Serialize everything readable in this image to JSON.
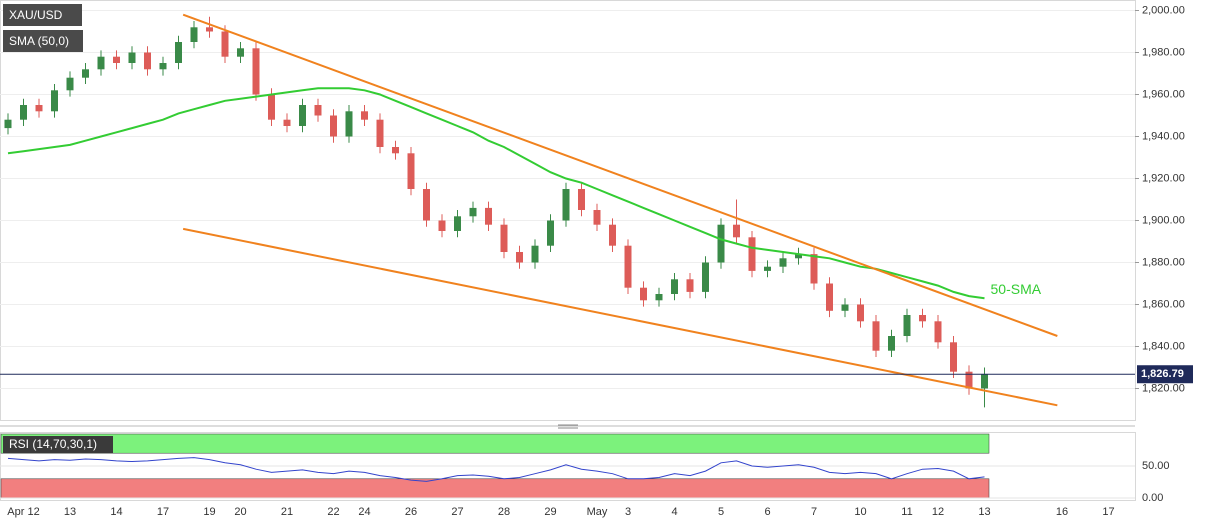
{
  "chart_data": [
    {
      "type": "candlestick",
      "title": "XAU/USD",
      "categories": [
        null,
        "Apr 12",
        null,
        null,
        "13",
        null,
        null,
        "14",
        null,
        null,
        "17",
        null,
        null,
        "19",
        null,
        "20",
        null,
        null,
        "21",
        null,
        null,
        "22",
        null,
        "24",
        null,
        null,
        "26",
        null,
        null,
        "27",
        null,
        null,
        "28",
        null,
        null,
        "29",
        null,
        null,
        "May",
        null,
        "3",
        null,
        null,
        "4",
        null,
        null,
        "5",
        null,
        null,
        "6",
        null,
        null,
        "7",
        null,
        null,
        "10",
        null,
        null,
        "11",
        null,
        "12",
        null,
        null,
        "13",
        null,
        null,
        null,
        null,
        "16",
        null,
        null,
        "17",
        null
      ],
      "open": [
        1944,
        1948,
        1955,
        1952,
        1962,
        1968,
        1972,
        1978,
        1975,
        1980,
        1972,
        1975,
        1985,
        1992,
        1990,
        1978,
        1982,
        1960,
        1948,
        1945,
        1955,
        1950,
        1940,
        1952,
        1948,
        1935,
        1932,
        1915,
        1900,
        1895,
        1902,
        1906,
        1898,
        1885,
        1880,
        1888,
        1900,
        1915,
        1905,
        1898,
        1888,
        1868,
        1862,
        1865,
        1872,
        1866,
        1880,
        1898,
        1892,
        1876,
        1878,
        1882,
        1884,
        1870,
        1857,
        1860,
        1852,
        1838,
        1845,
        1855,
        1852,
        1842,
        1828,
        1820,
        null,
        null,
        null,
        null,
        null,
        null,
        null,
        null,
        null
      ],
      "high": [
        1951,
        1958,
        1958,
        1965,
        1971,
        1975,
        1981,
        1981,
        1983,
        1983,
        1978,
        1988,
        1995,
        1997,
        1993,
        1985,
        1985,
        1963,
        1951,
        1958,
        1958,
        1953,
        1955,
        1955,
        1951,
        1938,
        1935,
        1918,
        1903,
        1905,
        1909,
        1909,
        1901,
        1888,
        1891,
        1903,
        1918,
        1918,
        1908,
        1901,
        1891,
        1871,
        1868,
        1875,
        1875,
        1883,
        1901,
        1910,
        1895,
        1881,
        1885,
        1887,
        1887,
        1873,
        1863,
        1863,
        1855,
        1848,
        1858,
        1858,
        1855,
        1845,
        1831,
        1830,
        null,
        null,
        null,
        null,
        null,
        null,
        null,
        null,
        null
      ],
      "low": [
        1941,
        1945,
        1949,
        1949,
        1959,
        1965,
        1969,
        1972,
        1972,
        1969,
        1969,
        1972,
        1982,
        1987,
        1975,
        1975,
        1957,
        1945,
        1942,
        1942,
        1947,
        1937,
        1937,
        1945,
        1932,
        1929,
        1912,
        1897,
        1892,
        1892,
        1899,
        1895,
        1882,
        1877,
        1877,
        1885,
        1897,
        1902,
        1895,
        1885,
        1865,
        1859,
        1859,
        1862,
        1863,
        1863,
        1877,
        1889,
        1873,
        1873,
        1875,
        1879,
        1867,
        1854,
        1854,
        1849,
        1835,
        1835,
        1842,
        1849,
        1839,
        1825,
        1817,
        1811,
        null,
        null,
        null,
        null,
        null,
        null,
        null,
        null,
        null
      ],
      "close": [
        1948,
        1955,
        1952,
        1962,
        1968,
        1972,
        1978,
        1975,
        1980,
        1972,
        1975,
        1985,
        1992,
        1990,
        1978,
        1982,
        1960,
        1948,
        1945,
        1955,
        1950,
        1940,
        1952,
        1948,
        1935,
        1932,
        1915,
        1900,
        1895,
        1902,
        1906,
        1898,
        1885,
        1880,
        1888,
        1900,
        1915,
        1905,
        1898,
        1888,
        1868,
        1862,
        1865,
        1872,
        1866,
        1880,
        1898,
        1892,
        1876,
        1878,
        1882,
        1884,
        1870,
        1857,
        1860,
        1852,
        1838,
        1845,
        1855,
        1852,
        1842,
        1828,
        1820,
        1826.79,
        null,
        null,
        null,
        null,
        null,
        null,
        null,
        null,
        null
      ],
      "up_color": "#3a8a48",
      "down_color": "#dd5c58",
      "series": [
        {
          "name": "SMA (50,0)",
          "color": "#33cc33",
          "values": [
            1932,
            1933,
            1934,
            1935,
            1936,
            1938,
            1940,
            1942,
            1944,
            1946,
            1948,
            1951,
            1953,
            1955,
            1957,
            1958,
            1959,
            1960,
            1961,
            1962,
            1963,
            1963,
            1963,
            1962,
            1960,
            1957,
            1954,
            1951,
            1948,
            1945,
            1942,
            1938,
            1935,
            1931,
            1927,
            1923,
            1920,
            1918,
            1915,
            1912,
            1909,
            1906,
            1903,
            1900,
            1897,
            1894,
            1891,
            1889,
            1887,
            1886,
            1885,
            1884,
            1883,
            1882,
            1880,
            1878,
            1877,
            1875,
            1873,
            1871,
            1869,
            1866,
            1864,
            1863,
            null,
            null,
            null,
            null,
            null,
            null,
            null,
            null,
            null
          ]
        }
      ],
      "annotation": "50-SMA",
      "trendlines": [
        {
          "color": "#f0821e",
          "x": [
            11.3,
            67.7
          ],
          "values": [
            1998,
            1845
          ]
        },
        {
          "color": "#f0821e",
          "x": [
            11.3,
            67.7
          ],
          "values": [
            1896,
            1812
          ]
        }
      ],
      "last_price": {
        "value": 1826.79,
        "label": "1,826.79"
      },
      "last_price_color": "#1f2a5a",
      "ylim": [
        1805,
        2005
      ],
      "yticks": [
        {
          "value": 1820,
          "label": "1,820.00"
        },
        {
          "value": 1840,
          "label": "1,840.00"
        },
        {
          "value": 1860,
          "label": "1,860.00"
        },
        {
          "value": 1880,
          "label": "1,880.00"
        },
        {
          "value": 1900,
          "label": "1,900.00"
        },
        {
          "value": 1920,
          "label": "1,920.00"
        },
        {
          "value": 1940,
          "label": "1,940.00"
        },
        {
          "value": 1960,
          "label": "1,960.00"
        },
        {
          "value": 1980,
          "label": "1,980.00"
        },
        {
          "value": 2000,
          "label": "2,000.00"
        }
      ],
      "grid": true
    },
    {
      "type": "line",
      "title": "RSI (14,70,30,1)",
      "color": "#3344cc",
      "values": [
        62,
        60,
        58,
        60,
        59,
        61,
        60,
        58,
        57,
        58,
        60,
        62,
        63,
        60,
        55,
        52,
        45,
        40,
        42,
        44,
        40,
        38,
        42,
        40,
        35,
        32,
        28,
        26,
        30,
        35,
        36,
        34,
        30,
        32,
        38,
        44,
        52,
        45,
        42,
        38,
        30,
        30,
        32,
        38,
        35,
        42,
        55,
        58,
        50,
        48,
        50,
        52,
        48,
        40,
        38,
        40,
        38,
        30,
        38,
        45,
        46,
        42,
        30,
        33,
        null,
        null,
        null,
        null,
        null,
        null,
        null,
        null,
        null
      ],
      "upper_band": 70,
      "lower_band": 30,
      "upper_color": "#7cf27c",
      "lower_color": "#f27f7f",
      "ylim": [
        0,
        100
      ],
      "yticks": [
        {
          "value": 0,
          "label": "0.00"
        },
        {
          "value": 50,
          "label": "50.00"
        }
      ]
    }
  ]
}
